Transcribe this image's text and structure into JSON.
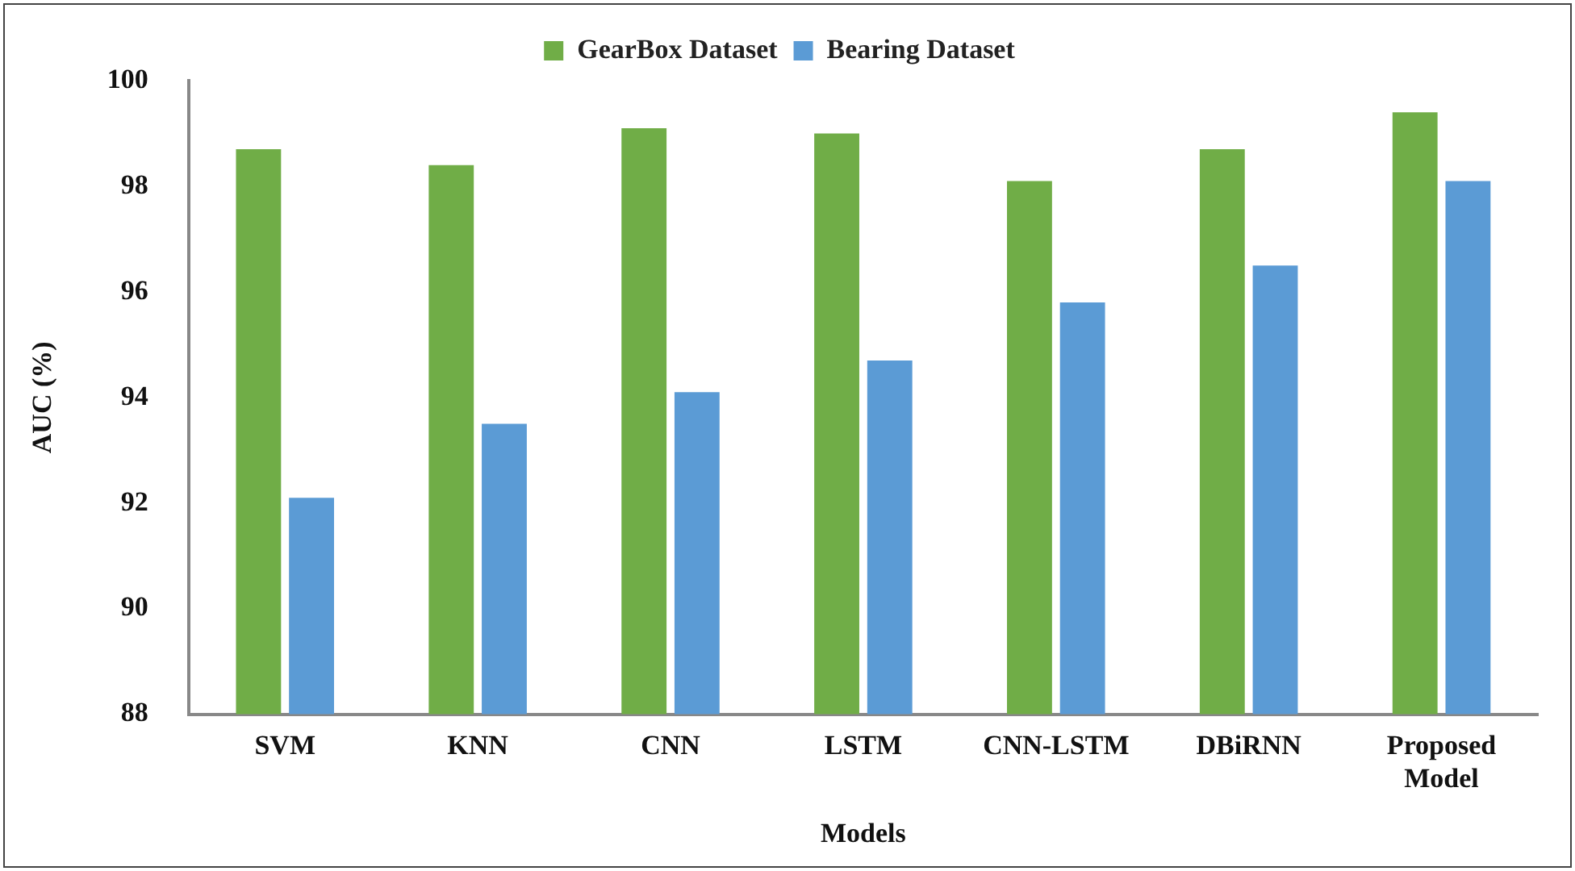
{
  "chart_data": {
    "type": "bar",
    "xlabel": "Models",
    "ylabel": "AUC (%)",
    "categories": [
      "SVM",
      "KNN",
      "CNN",
      "LSTM",
      "CNN-LSTM",
      "DBiRNN",
      "Proposed Model"
    ],
    "series": [
      {
        "name": "GearBox Dataset",
        "color": "#70ad47",
        "values": [
          98.7,
          98.4,
          99.1,
          99.0,
          98.1,
          98.7,
          99.4
        ]
      },
      {
        "name": "Bearing Dataset",
        "color": "#5b9bd5",
        "values": [
          92.1,
          93.5,
          94.1,
          94.7,
          95.8,
          96.5,
          98.1
        ]
      }
    ],
    "ylim": [
      88,
      100
    ],
    "yticks": [
      88,
      90,
      92,
      94,
      96,
      98,
      100
    ],
    "grid": false,
    "legend": "top"
  }
}
